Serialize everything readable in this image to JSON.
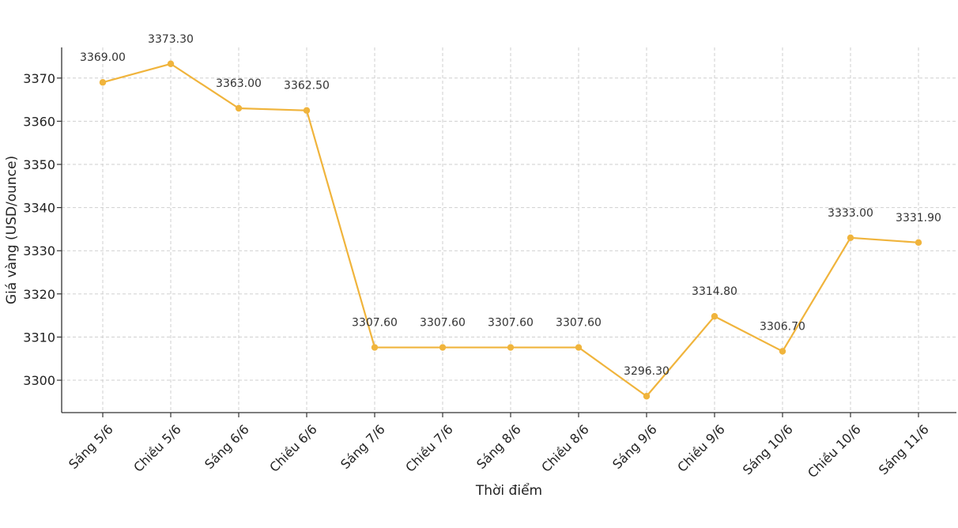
{
  "chart_data": {
    "type": "line",
    "title": "",
    "xlabel": "Thời điểm",
    "ylabel": "Giá vàng (USD/ounce)",
    "categories": [
      "Sáng 5/6",
      "Chiều 5/6",
      "Sáng 6/6",
      "Chiều 6/6",
      "Sáng 7/6",
      "Chiều 7/6",
      "Sáng 8/6",
      "Chiều 8/6",
      "Sáng 9/6",
      "Chiều 9/6",
      "Sáng 10/6",
      "Chiều 10/6",
      "Sáng 11/6"
    ],
    "values": [
      3369.0,
      3373.3,
      3363.0,
      3362.5,
      3307.6,
      3307.6,
      3307.6,
      3307.6,
      3296.3,
      3314.8,
      3306.7,
      3333.0,
      3331.9
    ],
    "value_labels": [
      "3369.00",
      "3373.30",
      "3363.00",
      "3362.50",
      "3307.60",
      "3307.60",
      "3307.60",
      "3307.60",
      "3296.30",
      "3314.80",
      "3306.70",
      "3333.00",
      "3331.90"
    ],
    "yticks": [
      3300,
      3310,
      3320,
      3330,
      3340,
      3350,
      3360,
      3370
    ],
    "ytick_labels": [
      "3300",
      "3310",
      "3320",
      "3330",
      "3340",
      "3350",
      "3360",
      "3370"
    ],
    "ylim": [
      3292.5,
      3377.1
    ],
    "grid": true,
    "line_color": "#f0b43c"
  }
}
